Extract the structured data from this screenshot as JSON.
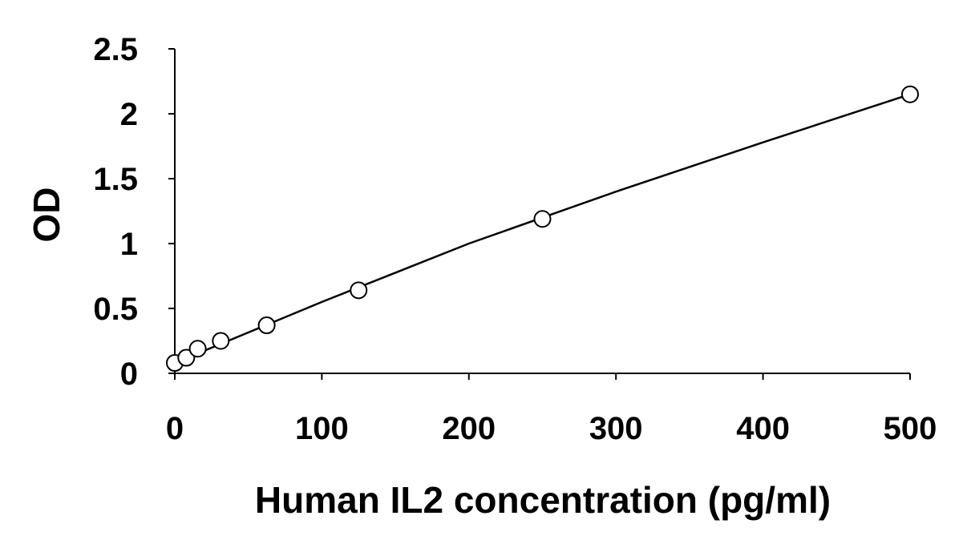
{
  "chart_data": {
    "type": "scatter",
    "title": "",
    "xlabel": "Human IL2 concentration (pg/ml)",
    "ylabel": "OD",
    "xlim": [
      0,
      500
    ],
    "ylim": [
      0,
      2.5
    ],
    "x_ticks": [
      0,
      100,
      200,
      300,
      400,
      500
    ],
    "x_tick_labels": [
      "0",
      "100",
      "200",
      "300",
      "400",
      "500"
    ],
    "y_ticks": [
      0,
      0.5,
      1,
      1.5,
      2,
      2.5
    ],
    "y_tick_labels": [
      "0",
      "0.5",
      "1",
      "1.5",
      "2",
      "2.5"
    ],
    "grid": false,
    "series": [
      {
        "marker": "open-circle",
        "x": [
          0,
          7.8,
          15.6,
          31.25,
          62.5,
          125,
          250,
          500
        ],
        "y": [
          0.08,
          0.12,
          0.19,
          0.25,
          0.37,
          0.64,
          1.19,
          2.15
        ]
      }
    ],
    "trendline": {
      "x": [
        0,
        100,
        200,
        300,
        400,
        500
      ],
      "y": [
        0.08,
        0.55,
        1.0,
        1.4,
        1.78,
        2.15
      ]
    }
  }
}
